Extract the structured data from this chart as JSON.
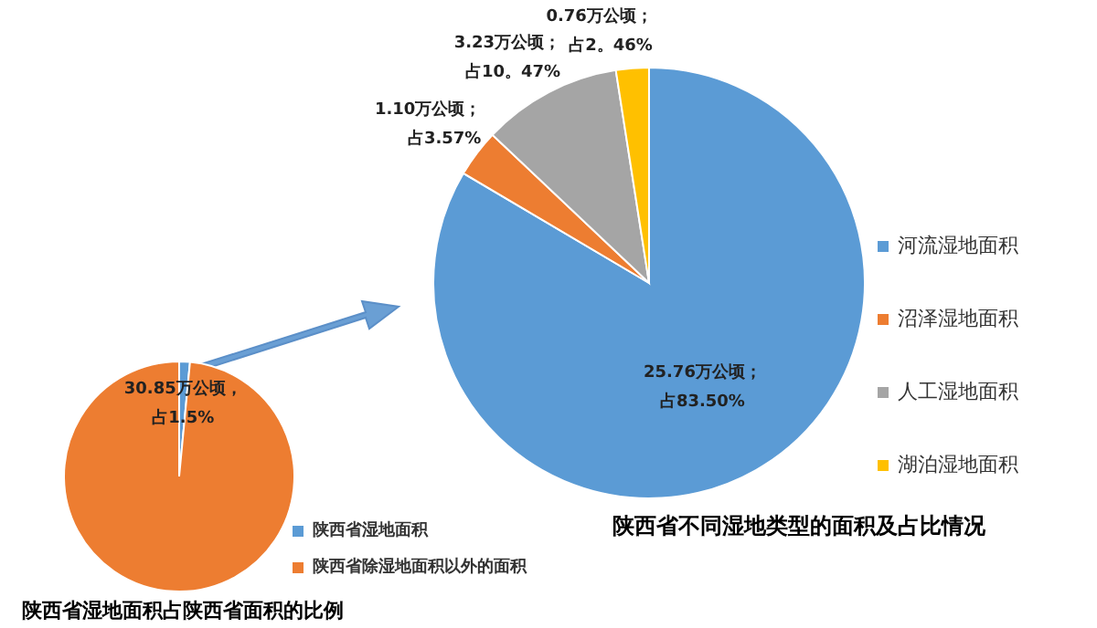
{
  "chart_data": [
    {
      "type": "pie",
      "title": "陕西省湿地面积占陕西省面积的比例",
      "categories": [
        "陕西省湿地面积",
        "陕西省除湿地面积以外的面积"
      ],
      "values": [
        1.5,
        98.5
      ],
      "colors": [
        "#5b9bd5",
        "#ed7d31"
      ],
      "value_labels": [
        "30.85万公顷，占1.5%",
        null
      ],
      "legend": "bottom right"
    },
    {
      "type": "pie",
      "title": "陕西省不同湿地类型的面积及占比情况",
      "categories": [
        "河流湿地面积",
        "沼泽湿地面积",
        "人工湿地面积",
        "湖泊湿地面积"
      ],
      "values": [
        25.76,
        1.1,
        3.23,
        0.76
      ],
      "colors": [
        "#5b9bd5",
        "#ed7d31",
        "#a5a5a5",
        "#ffc000"
      ],
      "value_labels": [
        "25.76万公顷；占83.50%",
        "1.10万公顷；占3.57%",
        "3.23万公顷；占10。47%",
        "0.76万公顷；占2。46%"
      ],
      "legend": "right"
    }
  ]
}
